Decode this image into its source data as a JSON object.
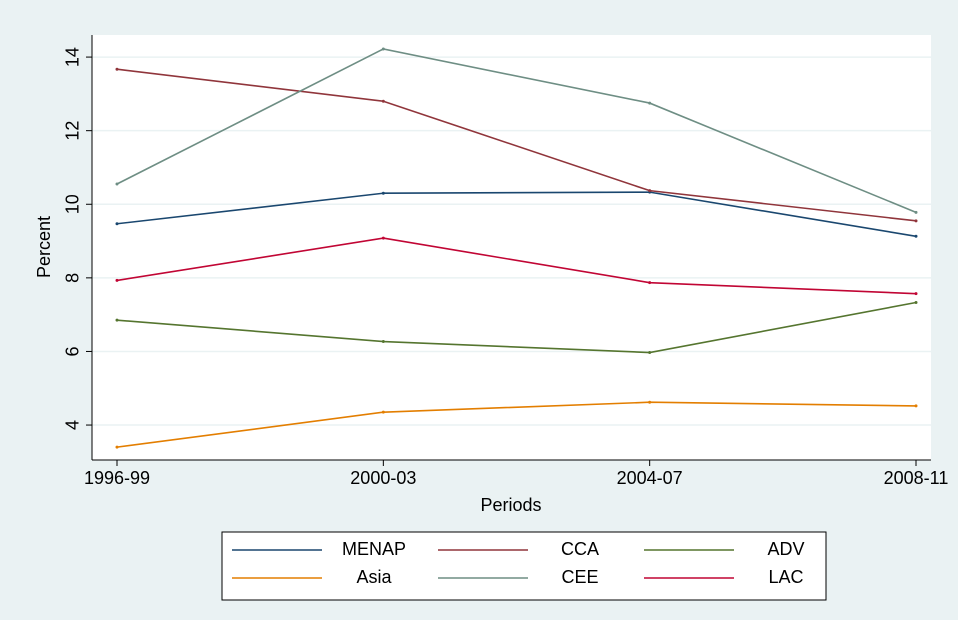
{
  "chart_data": {
    "type": "line",
    "x_label": "Periods",
    "y_label": "Percent",
    "categories": [
      "1996-99",
      "2000-03",
      "2004-07",
      "2008-11"
    ],
    "series": [
      {
        "name": "MENAP",
        "color": "#1a476f",
        "values": [
          9.47,
          10.3,
          10.33,
          9.13
        ]
      },
      {
        "name": "CCA",
        "color": "#90353b",
        "values": [
          13.67,
          12.8,
          10.37,
          9.55
        ]
      },
      {
        "name": "ADV",
        "color": "#55752f",
        "values": [
          6.85,
          6.27,
          5.97,
          7.33
        ]
      },
      {
        "name": "Asia",
        "color": "#e37e00",
        "values": [
          3.4,
          4.35,
          4.62,
          4.52
        ]
      },
      {
        "name": "CEE",
        "color": "#6e8e84",
        "values": [
          10.55,
          14.22,
          12.75,
          9.78
        ]
      },
      {
        "name": "LAC",
        "color": "#c10534",
        "values": [
          7.93,
          9.08,
          7.87,
          7.57
        ]
      }
    ],
    "ylim": [
      3.05,
      14.6
    ],
    "yticks": [
      4,
      6,
      8,
      10,
      12,
      14
    ],
    "grid": true,
    "legend": "bottom"
  }
}
